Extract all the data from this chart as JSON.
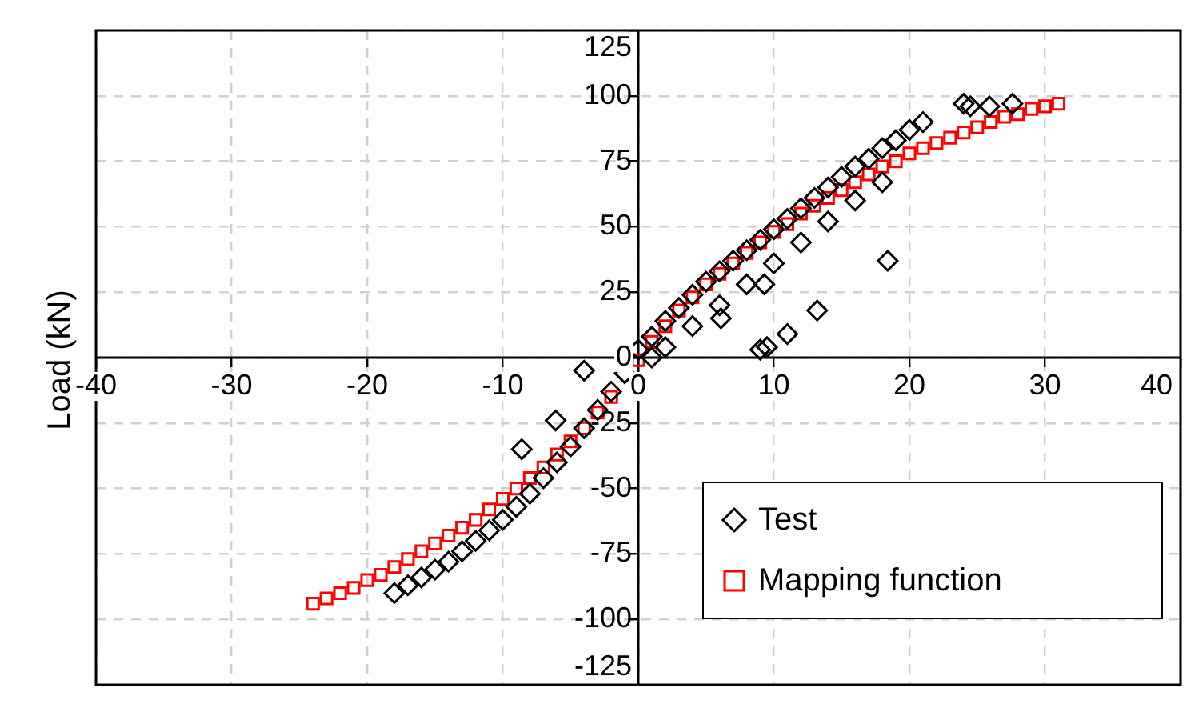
{
  "chart_data": {
    "type": "scatter",
    "ylabel": "Load (kN)",
    "xlim": [
      -40,
      40
    ],
    "xticks": [
      -40,
      -30,
      -20,
      -10,
      0,
      10,
      20,
      30,
      40
    ],
    "ylim": [
      -125,
      125
    ],
    "yticks": [
      -125,
      -100,
      -75,
      -50,
      -25,
      0,
      25,
      50,
      75,
      100,
      125
    ],
    "grid": true,
    "legend": "bottom right",
    "series": [
      {
        "name": "Test",
        "color": "#000000",
        "marker": "diamond",
        "x": [
          0,
          1,
          2,
          3,
          4,
          5,
          6,
          7,
          8,
          9,
          10,
          11,
          12,
          13,
          14,
          15,
          16,
          17,
          18,
          19,
          20,
          21,
          2,
          4,
          6,
          8,
          10,
          12,
          14,
          16,
          18,
          -18,
          -17,
          -16,
          -15,
          -14,
          -13,
          -12,
          -11,
          -10,
          -9,
          -8,
          -7,
          -6,
          -5,
          -4,
          -3,
          -2,
          -1,
          24,
          24.5,
          25.9,
          27.6,
          18.4,
          13.2,
          11,
          9,
          9.5,
          6.1,
          9.3,
          -8.6,
          -6.1,
          -4,
          1
        ],
        "values": [
          3,
          8,
          14,
          19,
          24,
          29,
          33,
          37,
          41,
          45,
          49,
          53,
          57,
          61,
          65,
          69,
          73,
          76,
          80,
          83,
          87,
          90,
          4,
          12,
          20,
          28,
          36,
          44,
          52,
          60,
          67,
          -90,
          -87,
          -84,
          -81,
          -78,
          -74,
          -70,
          -66,
          -62,
          -57,
          -52,
          -46,
          -40,
          -34,
          -27,
          -20,
          -13,
          -6,
          97,
          96,
          96,
          97,
          37,
          18,
          9,
          3,
          4,
          15,
          28,
          -35,
          -24,
          -5,
          0
        ]
      },
      {
        "name": "Mapping function",
        "color": "#ff0000",
        "marker": "square",
        "x": [
          -24,
          -23,
          -22,
          -21,
          -20,
          -19,
          -18,
          -17,
          -16,
          -15,
          -14,
          -13,
          -12,
          -11,
          -10,
          -9,
          -8,
          -7,
          -6,
          -5,
          -4,
          -3,
          -2,
          0,
          1,
          2,
          3,
          4,
          5,
          6,
          7,
          8,
          9,
          10,
          11,
          12,
          13,
          14,
          15,
          16,
          17,
          18,
          19,
          20,
          21,
          22,
          23,
          24,
          25,
          26,
          27,
          28,
          29,
          30,
          31
        ],
        "values": [
          -94,
          -92,
          -90,
          -88,
          -85,
          -83,
          -80,
          -77,
          -74,
          -71,
          -68,
          -65,
          -62,
          -58,
          -54,
          -50,
          -46,
          -42,
          -37,
          -32,
          -27,
          -21,
          -15,
          -1,
          6,
          12,
          18,
          23,
          28,
          32,
          36,
          40,
          44,
          48,
          51,
          55,
          58,
          61,
          64,
          67,
          70,
          73,
          75,
          78,
          80,
          82,
          84,
          86,
          88,
          90,
          92,
          93,
          95,
          96,
          97
        ]
      }
    ]
  }
}
